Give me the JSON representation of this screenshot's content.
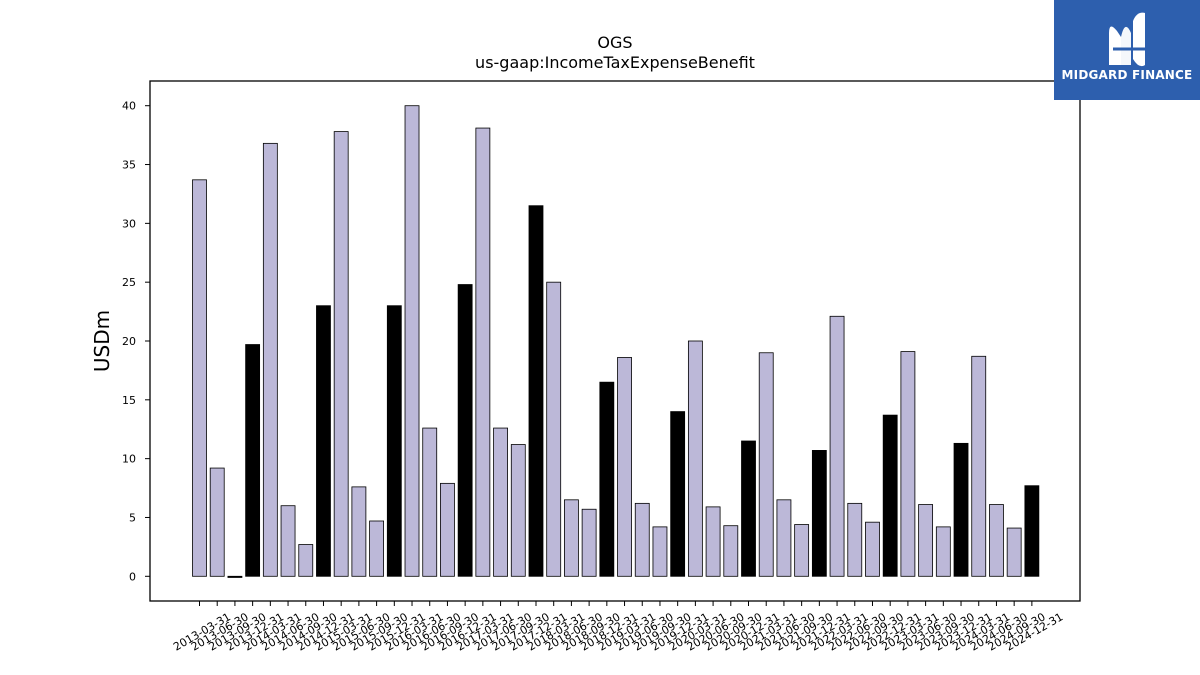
{
  "chart_data": {
    "type": "bar",
    "title": "OGS",
    "subtitle": "us-gaap:IncomeTaxExpenseBenefit",
    "xlabel": "",
    "ylabel": "USDm",
    "ylim": [
      -2.1,
      42.1
    ],
    "yticks": [
      0,
      5,
      10,
      15,
      20,
      25,
      30,
      35,
      40
    ],
    "grid": false,
    "colors": {
      "quarter": "#bcb8d8",
      "annual": "#000000",
      "edge": "#000000"
    },
    "categories": [
      "2013-03-31",
      "2013-06-30",
      "2013-09-30",
      "2013-12-31",
      "2014-03-31",
      "2014-06-30",
      "2014-09-30",
      "2014-12-31",
      "2015-03-31",
      "2015-06-30",
      "2015-09-30",
      "2015-12-31",
      "2016-03-31",
      "2016-06-30",
      "2016-09-30",
      "2016-12-31",
      "2017-03-31",
      "2017-06-30",
      "2017-09-30",
      "2017-12-31",
      "2018-03-31",
      "2018-06-30",
      "2018-09-30",
      "2018-12-31",
      "2019-03-31",
      "2019-06-30",
      "2019-09-30",
      "2019-12-31",
      "2020-03-31",
      "2020-06-30",
      "2020-09-30",
      "2020-12-31",
      "2021-03-31",
      "2021-06-30",
      "2021-09-30",
      "2021-12-31",
      "2022-03-31",
      "2022-06-30",
      "2022-09-30",
      "2022-12-31",
      "2023-03-31",
      "2023-06-30",
      "2023-09-30",
      "2023-12-31",
      "2024-03-31",
      "2024-06-30",
      "2024-09-30",
      "2024-12-31"
    ],
    "values": [
      33.7,
      9.2,
      -0.1,
      19.7,
      36.8,
      6.0,
      2.7,
      23.0,
      37.8,
      7.6,
      4.7,
      23.0,
      40.0,
      12.6,
      7.9,
      24.8,
      38.1,
      12.6,
      11.2,
      31.5,
      25.0,
      6.5,
      5.7,
      16.5,
      18.6,
      6.2,
      4.2,
      14.0,
      20.0,
      5.9,
      4.3,
      11.5,
      19.0,
      6.5,
      4.4,
      10.7,
      22.1,
      6.2,
      4.6,
      13.7,
      19.1,
      6.1,
      4.2,
      11.3,
      18.7,
      6.1,
      4.1,
      7.7
    ],
    "annual_flags": [
      false,
      false,
      true,
      true,
      false,
      false,
      false,
      true,
      false,
      false,
      false,
      true,
      false,
      false,
      false,
      true,
      false,
      false,
      false,
      true,
      false,
      false,
      false,
      true,
      false,
      false,
      false,
      true,
      false,
      false,
      false,
      true,
      false,
      false,
      false,
      true,
      false,
      false,
      false,
      true,
      false,
      false,
      false,
      true,
      false,
      false,
      false,
      true
    ]
  },
  "logo": {
    "text": "MIDGARD FINANCE",
    "icon": "midgard-logo-icon"
  }
}
